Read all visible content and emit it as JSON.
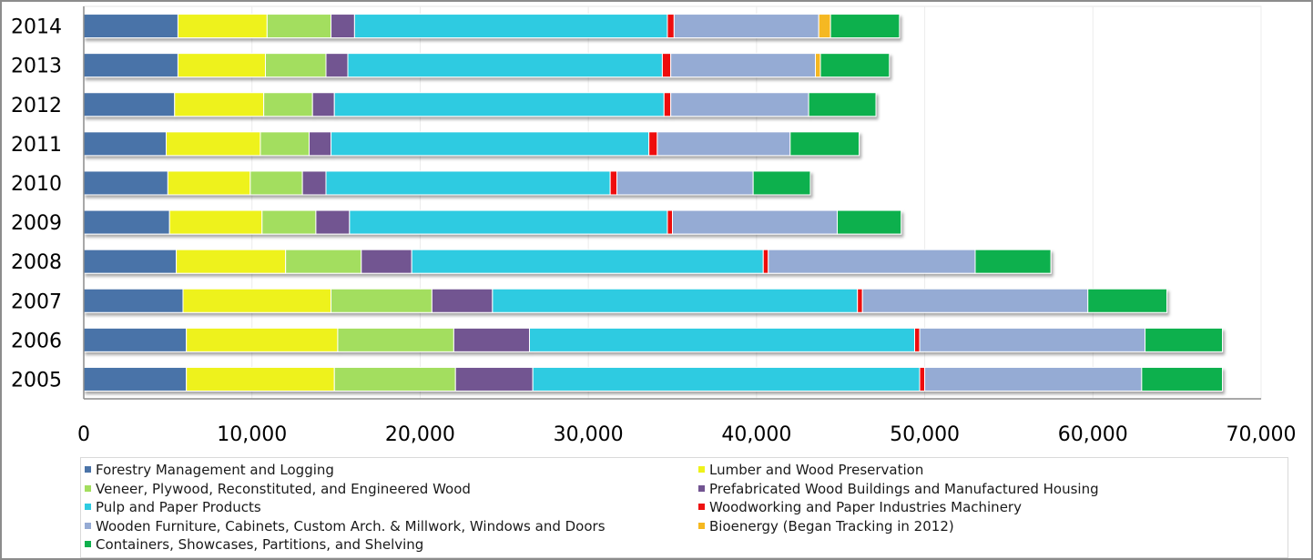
{
  "chart_data": {
    "type": "bar",
    "orientation": "horizontal",
    "stacked": true,
    "categories": [
      "2014",
      "2013",
      "2012",
      "2011",
      "2010",
      "2009",
      "2008",
      "2007",
      "2006",
      "2005"
    ],
    "xlim": [
      0,
      70000
    ],
    "x_ticks": [
      "0",
      "10,000",
      "20,000",
      "30,000",
      "40,000",
      "50,000",
      "60,000",
      "70,000"
    ],
    "grid": "vertical-light",
    "legend_position": "bottom",
    "series": [
      {
        "name": "Forestry Management and Logging",
        "color": "#4a73a8",
        "values": [
          5600,
          5600,
          5400,
          4900,
          5000,
          5100,
          5500,
          5900,
          6100,
          6100
        ]
      },
      {
        "name": "Lumber and Wood Preservation",
        "color": "#eef21a",
        "values": [
          5300,
          5200,
          5300,
          5600,
          4900,
          5500,
          6500,
          8800,
          9000,
          8800
        ]
      },
      {
        "name": "Veneer, Plywood, Reconstituted, and Engineered Wood",
        "color": "#a3de5e",
        "values": [
          3800,
          3600,
          2900,
          2900,
          3100,
          3200,
          4500,
          6000,
          6900,
          7200
        ]
      },
      {
        "name": "Prefabricated Wood Buildings and Manufactured Housing",
        "color": "#725491",
        "values": [
          1400,
          1300,
          1300,
          1300,
          1400,
          2000,
          3000,
          3600,
          4500,
          4600
        ]
      },
      {
        "name": "Pulp and Paper Products",
        "color": "#2ecbe1",
        "values": [
          18600,
          18700,
          19600,
          18900,
          16900,
          18900,
          20900,
          21700,
          22900,
          23000
        ]
      },
      {
        "name": "Woodworking and Paper Industries Machinery",
        "color": "#ee1111",
        "values": [
          400,
          500,
          400,
          500,
          400,
          300,
          300,
          300,
          300,
          300
        ]
      },
      {
        "name": "Wooden Furniture, Cabinets, Custom Arch. & Millwork, Windows and Doors",
        "color": "#95abd4",
        "values": [
          8600,
          8600,
          8200,
          7900,
          8100,
          9800,
          12300,
          13400,
          13400,
          12900
        ]
      },
      {
        "name": "Bioenergy (Began Tracking in 2012)",
        "color": "#f5b820",
        "values": [
          700,
          300,
          0,
          0,
          0,
          0,
          0,
          0,
          0,
          0
        ]
      },
      {
        "name": "Containers, Showcases, Partitions, and Shelving",
        "color": "#0fb04d",
        "values": [
          4100,
          4100,
          4000,
          4100,
          3400,
          3800,
          4500,
          4700,
          4600,
          4800
        ]
      }
    ]
  }
}
